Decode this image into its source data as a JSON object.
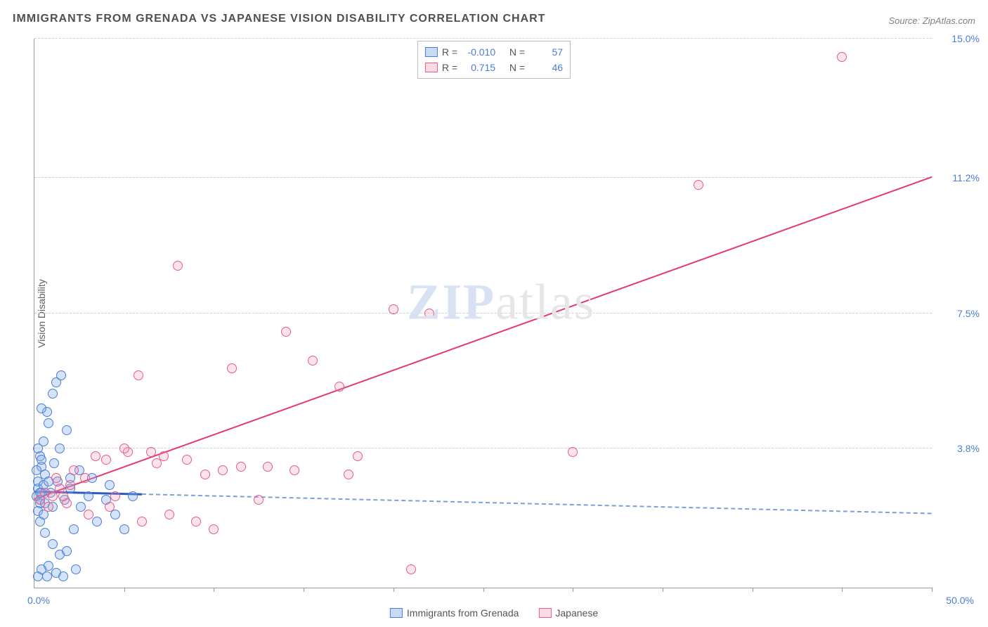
{
  "title": "IMMIGRANTS FROM GRENADA VS JAPANESE VISION DISABILITY CORRELATION CHART",
  "source": "Source: ZipAtlas.com",
  "y_axis_label": "Vision Disability",
  "watermark": {
    "bold": "ZIP",
    "rest": "atlas"
  },
  "chart": {
    "type": "scatter",
    "xlim": [
      0,
      50
    ],
    "ylim": [
      0,
      15
    ],
    "y_ticks": [
      3.8,
      7.5,
      11.2,
      15.0
    ],
    "x_tick_positions": [
      5,
      10,
      15,
      20,
      25,
      30,
      35,
      40,
      45,
      50
    ],
    "x_label_start": "0.0%",
    "x_label_end": "50.0%",
    "background_color": "#ffffff",
    "grid_color": "#d0d0d0",
    "axis_color": "#999999",
    "marker_size": 14,
    "series": [
      {
        "name": "Immigrants from Grenada",
        "color_fill": "rgba(135,175,230,0.35)",
        "color_stroke": "#4a7dd8",
        "r": "-0.010",
        "n": "57",
        "trend": {
          "x1": 0,
          "y1": 2.6,
          "x2": 50,
          "y2": 2.0,
          "solid_until_x": 6
        },
        "points": [
          [
            0.1,
            2.5
          ],
          [
            0.2,
            2.7
          ],
          [
            0.3,
            2.4
          ],
          [
            0.2,
            2.9
          ],
          [
            0.4,
            2.6
          ],
          [
            0.3,
            2.3
          ],
          [
            0.5,
            2.8
          ],
          [
            0.3,
            3.6
          ],
          [
            0.4,
            3.3
          ],
          [
            0.6,
            3.1
          ],
          [
            0.2,
            3.8
          ],
          [
            0.5,
            4.0
          ],
          [
            0.8,
            4.5
          ],
          [
            1.0,
            5.3
          ],
          [
            1.2,
            5.6
          ],
          [
            0.7,
            4.8
          ],
          [
            1.5,
            5.8
          ],
          [
            0.4,
            4.9
          ],
          [
            1.8,
            4.3
          ],
          [
            2.0,
            3.0
          ],
          [
            0.3,
            1.8
          ],
          [
            0.6,
            1.5
          ],
          [
            1.0,
            1.2
          ],
          [
            1.4,
            0.9
          ],
          [
            0.8,
            0.6
          ],
          [
            1.8,
            1.0
          ],
          [
            2.2,
            1.6
          ],
          [
            2.6,
            2.2
          ],
          [
            3.0,
            2.5
          ],
          [
            2.0,
            2.7
          ],
          [
            2.5,
            3.2
          ],
          [
            3.2,
            3.0
          ],
          [
            4.0,
            2.4
          ],
          [
            4.5,
            2.0
          ],
          [
            5.0,
            1.6
          ],
          [
            3.5,
            1.8
          ],
          [
            4.2,
            2.8
          ],
          [
            5.5,
            2.5
          ],
          [
            0.2,
            0.3
          ],
          [
            0.4,
            0.5
          ],
          [
            0.7,
            0.3
          ],
          [
            1.2,
            0.4
          ],
          [
            1.6,
            0.3
          ],
          [
            2.3,
            0.5
          ],
          [
            0.1,
            3.2
          ],
          [
            0.4,
            3.5
          ],
          [
            0.2,
            2.1
          ],
          [
            0.6,
            2.3
          ],
          [
            0.9,
            2.6
          ],
          [
            1.3,
            2.9
          ],
          [
            1.7,
            2.4
          ],
          [
            0.5,
            2.0
          ],
          [
            0.8,
            2.9
          ],
          [
            1.1,
            3.4
          ],
          [
            1.4,
            3.8
          ],
          [
            0.3,
            2.6
          ],
          [
            1.0,
            2.2
          ]
        ]
      },
      {
        "name": "Japanese",
        "color_fill": "rgba(240,150,175,0.25)",
        "color_stroke": "#e85b8a",
        "r": "0.715",
        "n": "46",
        "trend": {
          "x1": 0,
          "y1": 2.4,
          "x2": 50,
          "y2": 11.2,
          "solid_until_x": 50
        },
        "points": [
          [
            0.3,
            2.4
          ],
          [
            0.6,
            2.6
          ],
          [
            1.0,
            2.5
          ],
          [
            1.4,
            2.7
          ],
          [
            1.8,
            2.3
          ],
          [
            2.2,
            3.2
          ],
          [
            2.8,
            3.0
          ],
          [
            3.4,
            3.6
          ],
          [
            4.0,
            3.5
          ],
          [
            4.5,
            2.5
          ],
          [
            5.2,
            3.7
          ],
          [
            5.8,
            5.8
          ],
          [
            6.5,
            3.7
          ],
          [
            7.2,
            3.6
          ],
          [
            8.0,
            8.8
          ],
          [
            9.0,
            1.8
          ],
          [
            9.5,
            3.1
          ],
          [
            10.0,
            1.6
          ],
          [
            10.5,
            3.2
          ],
          [
            11.5,
            3.3
          ],
          [
            12.5,
            2.4
          ],
          [
            13.0,
            3.3
          ],
          [
            14.0,
            7.0
          ],
          [
            15.5,
            6.2
          ],
          [
            17.0,
            5.5
          ],
          [
            17.5,
            3.1
          ],
          [
            18.0,
            3.6
          ],
          [
            20.0,
            7.6
          ],
          [
            21.0,
            0.5
          ],
          [
            22.0,
            7.5
          ],
          [
            30.0,
            3.7
          ],
          [
            37.0,
            11.0
          ],
          [
            45.0,
            14.5
          ],
          [
            6.0,
            1.8
          ],
          [
            7.5,
            2.0
          ],
          [
            3.0,
            2.0
          ],
          [
            4.2,
            2.2
          ],
          [
            1.2,
            3.0
          ],
          [
            2.0,
            2.8
          ],
          [
            0.8,
            2.2
          ],
          [
            1.6,
            2.5
          ],
          [
            5.0,
            3.8
          ],
          [
            6.8,
            3.4
          ],
          [
            8.5,
            3.5
          ],
          [
            11.0,
            6.0
          ],
          [
            14.5,
            3.2
          ]
        ]
      }
    ]
  },
  "top_legend": {
    "r_label": "R =",
    "n_label": "N ="
  },
  "bottom_legend": {
    "items": [
      "Immigrants from Grenada",
      "Japanese"
    ]
  }
}
